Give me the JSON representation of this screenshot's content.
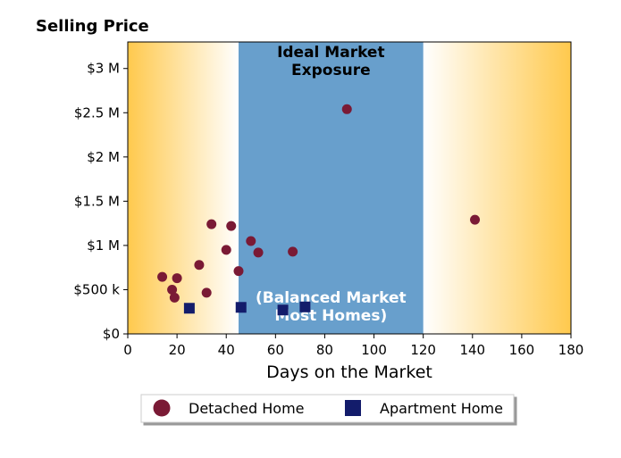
{
  "chart_data": {
    "type": "scatter",
    "title": "Selling Price",
    "xlabel": "Days on the Market",
    "ylabel": "",
    "xlim": [
      0,
      180
    ],
    "ylim": [
      0,
      3300000
    ],
    "x_ticks": [
      0,
      20,
      40,
      60,
      80,
      100,
      120,
      140,
      160,
      180
    ],
    "x_tick_labels": [
      "0",
      "20",
      "40",
      "60",
      "80",
      "100",
      "120",
      "140",
      "160",
      "180"
    ],
    "y_ticks": [
      0,
      500000,
      1000000,
      1500000,
      2000000,
      2500000,
      3000000
    ],
    "y_tick_labels": [
      "$0",
      "$500 k",
      "$1 M",
      "$1.5 M",
      "$2 M",
      "$2.5 M",
      "$3 M"
    ],
    "grid": false,
    "legend_position": "bottom",
    "background": {
      "gradient_color": "#ffc94d",
      "highlight_band": {
        "x_start": 45,
        "x_end": 120,
        "color": "#689fcc"
      }
    },
    "annotations": [
      {
        "text_lines": [
          "Ideal Market",
          "Exposure"
        ],
        "color": "#000000",
        "position": "top"
      },
      {
        "text_lines": [
          "(Balanced Market",
          "Most Homes)"
        ],
        "color": "#ffffff",
        "position": "bottom"
      }
    ],
    "series": [
      {
        "name": "Detached Home",
        "marker": "circle",
        "color": "#7a1a35",
        "points": [
          [
            14,
            645000
          ],
          [
            18,
            500000
          ],
          [
            19,
            410000
          ],
          [
            20,
            630000
          ],
          [
            29,
            780000
          ],
          [
            32,
            465000
          ],
          [
            34,
            1240000
          ],
          [
            40,
            950000
          ],
          [
            42,
            1220000
          ],
          [
            45,
            710000
          ],
          [
            50,
            1050000
          ],
          [
            53,
            920000
          ],
          [
            67,
            930000
          ],
          [
            89,
            2540000
          ],
          [
            141,
            1290000
          ]
        ]
      },
      {
        "name": "Apartment Home",
        "marker": "square",
        "color": "#131c6b",
        "points": [
          [
            25,
            290000
          ],
          [
            46,
            300000
          ],
          [
            63,
            270000
          ],
          [
            72,
            305000
          ]
        ]
      }
    ]
  }
}
